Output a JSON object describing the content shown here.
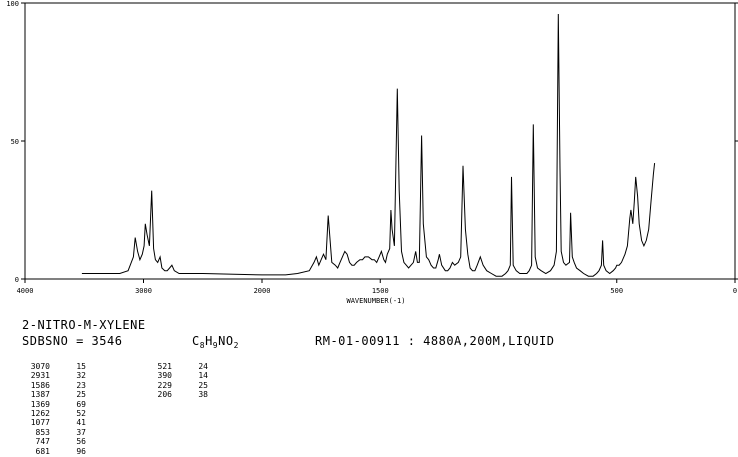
{
  "chart_data": {
    "type": "line",
    "xlabel": "WAVENUMBER(-1)",
    "xlim": [
      4000,
      0
    ],
    "ylim": [
      0,
      100
    ],
    "x_ticks": [
      4000,
      3000,
      2000,
      1500,
      500,
      0
    ],
    "x_tick_labels": [
      "4000",
      "3000",
      "2000",
      "1500",
      "500",
      "0"
    ],
    "y_ticks": [
      0,
      50,
      100
    ],
    "y_tick_labels": [
      "0",
      "50",
      "100"
    ],
    "baseline": 2,
    "points": [
      [
        3520,
        2
      ],
      [
        3400,
        2
      ],
      [
        3300,
        2
      ],
      [
        3200,
        2
      ],
      [
        3130,
        3
      ],
      [
        3085,
        8
      ],
      [
        3070,
        15
      ],
      [
        3050,
        10
      ],
      [
        3030,
        7
      ],
      [
        3010,
        9
      ],
      [
        2995,
        12
      ],
      [
        2985,
        20
      ],
      [
        2970,
        16
      ],
      [
        2950,
        12
      ],
      [
        2931,
        32
      ],
      [
        2915,
        11
      ],
      [
        2900,
        7
      ],
      [
        2880,
        6
      ],
      [
        2860,
        8
      ],
      [
        2845,
        4
      ],
      [
        2820,
        3
      ],
      [
        2800,
        3
      ],
      [
        2780,
        4
      ],
      [
        2760,
        5
      ],
      [
        2740,
        3
      ],
      [
        2700,
        2
      ],
      [
        2500,
        2
      ],
      [
        2000,
        1.5
      ],
      [
        1900,
        1.5
      ],
      [
        1850,
        2
      ],
      [
        1800,
        3
      ],
      [
        1780,
        6
      ],
      [
        1770,
        8
      ],
      [
        1760,
        5
      ],
      [
        1740,
        9
      ],
      [
        1730,
        7
      ],
      [
        1720,
        23
      ],
      [
        1705,
        6
      ],
      [
        1690,
        5
      ],
      [
        1680,
        4
      ],
      [
        1670,
        6
      ],
      [
        1660,
        8
      ],
      [
        1650,
        10
      ],
      [
        1640,
        9
      ],
      [
        1630,
        6
      ],
      [
        1620,
        5
      ],
      [
        1610,
        5
      ],
      [
        1600,
        6
      ],
      [
        1586,
        7
      ],
      [
        1575,
        7
      ],
      [
        1565,
        8
      ],
      [
        1550,
        8
      ],
      [
        1535,
        7
      ],
      [
        1525,
        7
      ],
      [
        1515,
        6
      ],
      [
        1505,
        8
      ],
      [
        1495,
        10
      ],
      [
        1485,
        7
      ],
      [
        1478,
        6
      ],
      [
        1470,
        9
      ],
      [
        1460,
        11
      ],
      [
        1455,
        25
      ],
      [
        1450,
        18
      ],
      [
        1440,
        12
      ],
      [
        1428,
        69
      ],
      [
        1420,
        32
      ],
      [
        1410,
        10
      ],
      [
        1400,
        6
      ],
      [
        1390,
        5
      ],
      [
        1380,
        4
      ],
      [
        1370,
        5
      ],
      [
        1360,
        6
      ],
      [
        1350,
        10
      ],
      [
        1343,
        6
      ],
      [
        1335,
        6
      ],
      [
        1325,
        52
      ],
      [
        1318,
        20
      ],
      [
        1305,
        8
      ],
      [
        1295,
        7
      ],
      [
        1285,
        5
      ],
      [
        1275,
        4
      ],
      [
        1265,
        4
      ],
      [
        1255,
        7
      ],
      [
        1250,
        9
      ],
      [
        1240,
        5
      ],
      [
        1225,
        3
      ],
      [
        1215,
        3
      ],
      [
        1205,
        4
      ],
      [
        1195,
        6
      ],
      [
        1185,
        5
      ],
      [
        1170,
        6
      ],
      [
        1160,
        8
      ],
      [
        1150,
        41
      ],
      [
        1140,
        18
      ],
      [
        1130,
        9
      ],
      [
        1120,
        4
      ],
      [
        1110,
        3
      ],
      [
        1100,
        3
      ],
      [
        1090,
        5
      ],
      [
        1077,
        8
      ],
      [
        1065,
        5
      ],
      [
        1050,
        3
      ],
      [
        1030,
        2
      ],
      [
        1010,
        1
      ],
      [
        1000,
        1
      ],
      [
        985,
        1
      ],
      [
        970,
        2
      ],
      [
        960,
        3
      ],
      [
        950,
        5
      ],
      [
        945,
        37
      ],
      [
        938,
        5
      ],
      [
        925,
        3
      ],
      [
        910,
        2
      ],
      [
        895,
        2
      ],
      [
        880,
        2
      ],
      [
        870,
        3
      ],
      [
        860,
        5
      ],
      [
        853,
        56
      ],
      [
        845,
        8
      ],
      [
        835,
        4
      ],
      [
        820,
        3
      ],
      [
        800,
        2
      ],
      [
        780,
        3
      ],
      [
        765,
        5
      ],
      [
        755,
        10
      ],
      [
        747,
        96
      ],
      [
        740,
        40
      ],
      [
        735,
        10
      ],
      [
        725,
        6
      ],
      [
        715,
        5
      ],
      [
        700,
        6
      ],
      [
        695,
        24
      ],
      [
        688,
        8
      ],
      [
        680,
        6
      ],
      [
        670,
        4
      ],
      [
        655,
        3
      ],
      [
        640,
        2
      ],
      [
        620,
        1
      ],
      [
        600,
        1
      ],
      [
        585,
        2
      ],
      [
        575,
        3
      ],
      [
        565,
        5
      ],
      [
        560,
        14
      ],
      [
        555,
        5
      ],
      [
        545,
        3
      ],
      [
        530,
        2
      ],
      [
        515,
        3
      ],
      [
        505,
        4
      ],
      [
        500,
        5
      ],
      [
        490,
        5
      ],
      [
        480,
        6
      ],
      [
        465,
        9
      ],
      [
        455,
        12
      ],
      [
        445,
        22
      ],
      [
        440,
        25
      ],
      [
        432,
        20
      ],
      [
        426,
        28
      ],
      [
        420,
        37
      ],
      [
        412,
        30
      ],
      [
        405,
        20
      ],
      [
        395,
        14
      ],
      [
        385,
        12
      ],
      [
        375,
        14
      ],
      [
        365,
        18
      ],
      [
        355,
        28
      ],
      [
        345,
        38
      ],
      [
        340,
        42
      ]
    ]
  },
  "compound_name": "2-NITRO-M-XYLENE",
  "sdbs_line": "SDBSNO = 3546",
  "formula": {
    "c": "C",
    "c_n": "8",
    "h": "H",
    "h_n": "9",
    "rest": "NO",
    "o_n": "2"
  },
  "sample_info": "RM-01-00911 : 4880A,200M,LIQUID",
  "peak_table_left": [
    [
      "3070",
      "15"
    ],
    [
      "2931",
      "32"
    ],
    [
      "1586",
      "23"
    ],
    [
      "1387",
      "25"
    ],
    [
      "1369",
      "69"
    ],
    [
      "1262",
      "52"
    ],
    [
      "1077",
      "41"
    ],
    [
      "853",
      "37"
    ],
    [
      "747",
      "56"
    ],
    [
      "681",
      "96"
    ]
  ],
  "peak_table_right": [
    [
      "521",
      "24"
    ],
    [
      "390",
      "14"
    ],
    [
      "229",
      "25"
    ],
    [
      "206",
      "38"
    ]
  ]
}
